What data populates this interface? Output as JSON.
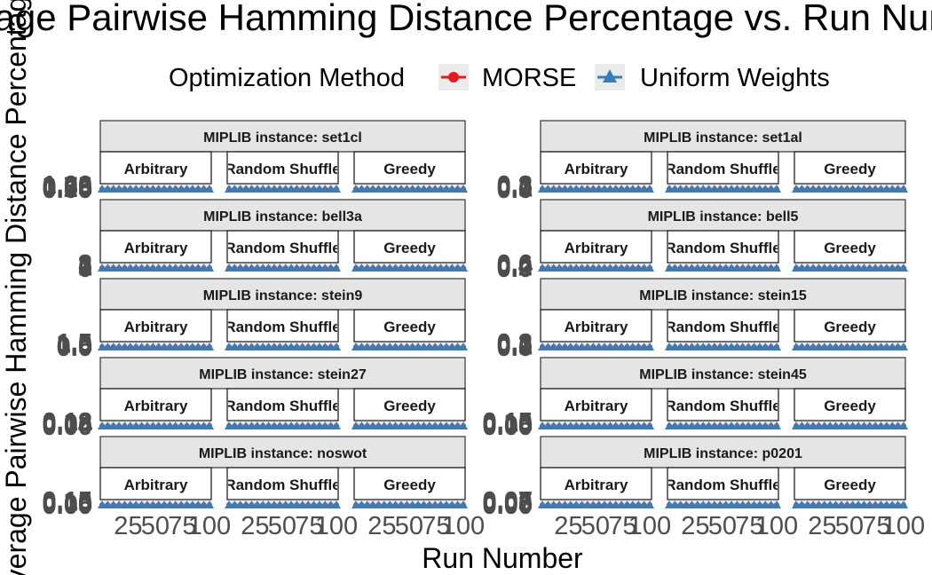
{
  "chart_data": {
    "type": "line",
    "title": "Average Pairwise Hamming Distance Percentage vs. Run Number",
    "xlabel": "Run Number",
    "ylabel": "Average Pairwise Hamming Distance Percentage",
    "legend": {
      "title": "Optimization Method",
      "position": "top",
      "entries": [
        {
          "name": "MORSE",
          "color": "#e41a1c",
          "marker": "circle"
        },
        {
          "name": "Uniform Weights",
          "color": "#377eb8",
          "marker": "triangle"
        }
      ]
    },
    "x_ticks": [
      "25",
      "50",
      "75",
      "100"
    ],
    "xlim": [
      1,
      100
    ],
    "orderings": [
      "Arbitrary",
      "Random Shuffle",
      "Greedy"
    ],
    "panels": [
      {
        "instance": "MIPLIB instance: set1cl",
        "y_ticks": [
          "0.00",
          "0.25",
          "0.50",
          "0.75",
          "1.00"
        ],
        "ylim": [
          0,
          1
        ],
        "morse": 0.0,
        "uniform": 0.0
      },
      {
        "instance": "MIPLIB instance: set1al",
        "y_ticks": [
          "0.0",
          "0.1",
          "0.2",
          "0.3"
        ],
        "ylim": [
          0,
          0.3
        ],
        "morse": 0.0,
        "uniform": 0.0
      },
      {
        "instance": "MIPLIB instance: bell3a",
        "y_ticks": [
          "0",
          "1",
          "2",
          "3"
        ],
        "ylim": [
          0,
          3
        ],
        "morse": 0.0,
        "uniform": 0.0
      },
      {
        "instance": "MIPLIB instance: bell5",
        "y_ticks": [
          "0.0",
          "0.2",
          "0.4",
          "0.6"
        ],
        "ylim": [
          0,
          0.6
        ],
        "morse": 0.0,
        "uniform": 0.0
      },
      {
        "instance": "MIPLIB instance: stein9",
        "y_ticks": [
          "0.0",
          "0.5",
          "1.0",
          "1.5"
        ],
        "ylim": [
          0,
          1.5
        ],
        "morse": 0.0,
        "uniform": 0.0
      },
      {
        "instance": "MIPLIB instance: stein15",
        "y_ticks": [
          "0.0",
          "0.1",
          "0.2",
          "0.3"
        ],
        "ylim": [
          0,
          0.3
        ],
        "morse": 0.0,
        "uniform": 0.0
      },
      {
        "instance": "MIPLIB instance: stein27",
        "y_ticks": [
          "0.00",
          "0.04",
          "0.08",
          "0.12"
        ],
        "ylim": [
          0,
          0.12
        ],
        "morse": 0.0,
        "uniform": 0.0
      },
      {
        "instance": "MIPLIB instance: stein45",
        "y_ticks": [
          "0.00",
          "0.05",
          "0.10",
          "0.15"
        ],
        "ylim": [
          0,
          0.15
        ],
        "morse": 0.0,
        "uniform": 0.0
      },
      {
        "instance": "MIPLIB instance: noswot",
        "y_ticks": [
          "0.00",
          "0.05",
          "0.10",
          "0.15"
        ],
        "ylim": [
          0,
          0.15
        ],
        "morse": 0.0,
        "uniform": 0.0
      },
      {
        "instance": "MIPLIB instance: p0201",
        "y_ticks": [
          "0.00",
          "0.03",
          "0.05",
          "0.07"
        ],
        "ylim": [
          0,
          0.07
        ],
        "morse": 0.0,
        "uniform": 0.0
      }
    ],
    "grid": true
  }
}
